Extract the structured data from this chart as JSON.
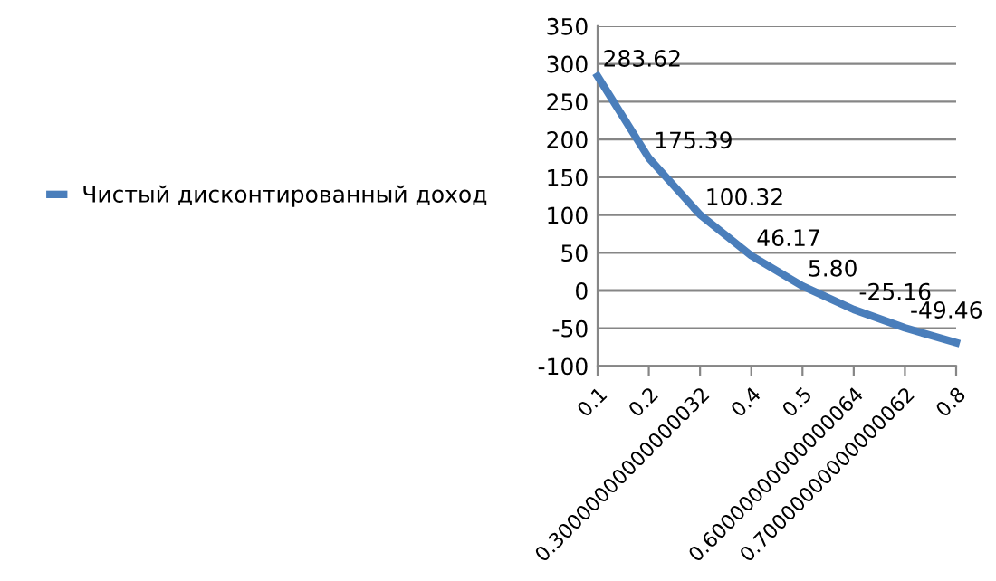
{
  "chart_data": {
    "type": "line",
    "categories": [
      "0.1",
      "0.2",
      "0.30000000000000032",
      "0.4",
      "0.5",
      "0.60000000000000064",
      "0.70000000000000062",
      "0.8"
    ],
    "series": [
      {
        "name": "Чистый дисконтированный доход",
        "color": "#4a7ebb",
        "values": [
          283.62,
          175.39,
          100.32,
          46.17,
          5.8,
          -25.16,
          -49.46,
          -69
        ],
        "value_labels": [
          "283.62",
          "175.39",
          "100.32",
          "46.17",
          "5.80",
          "-25.16",
          "-49.46",
          null
        ]
      }
    ],
    "ylim": [
      -100,
      350
    ],
    "yticks": [
      -100,
      -50,
      0,
      50,
      100,
      150,
      200,
      250,
      300,
      350
    ],
    "grid": "y",
    "legend": "left",
    "marker": "none",
    "line_style": "solid"
  }
}
